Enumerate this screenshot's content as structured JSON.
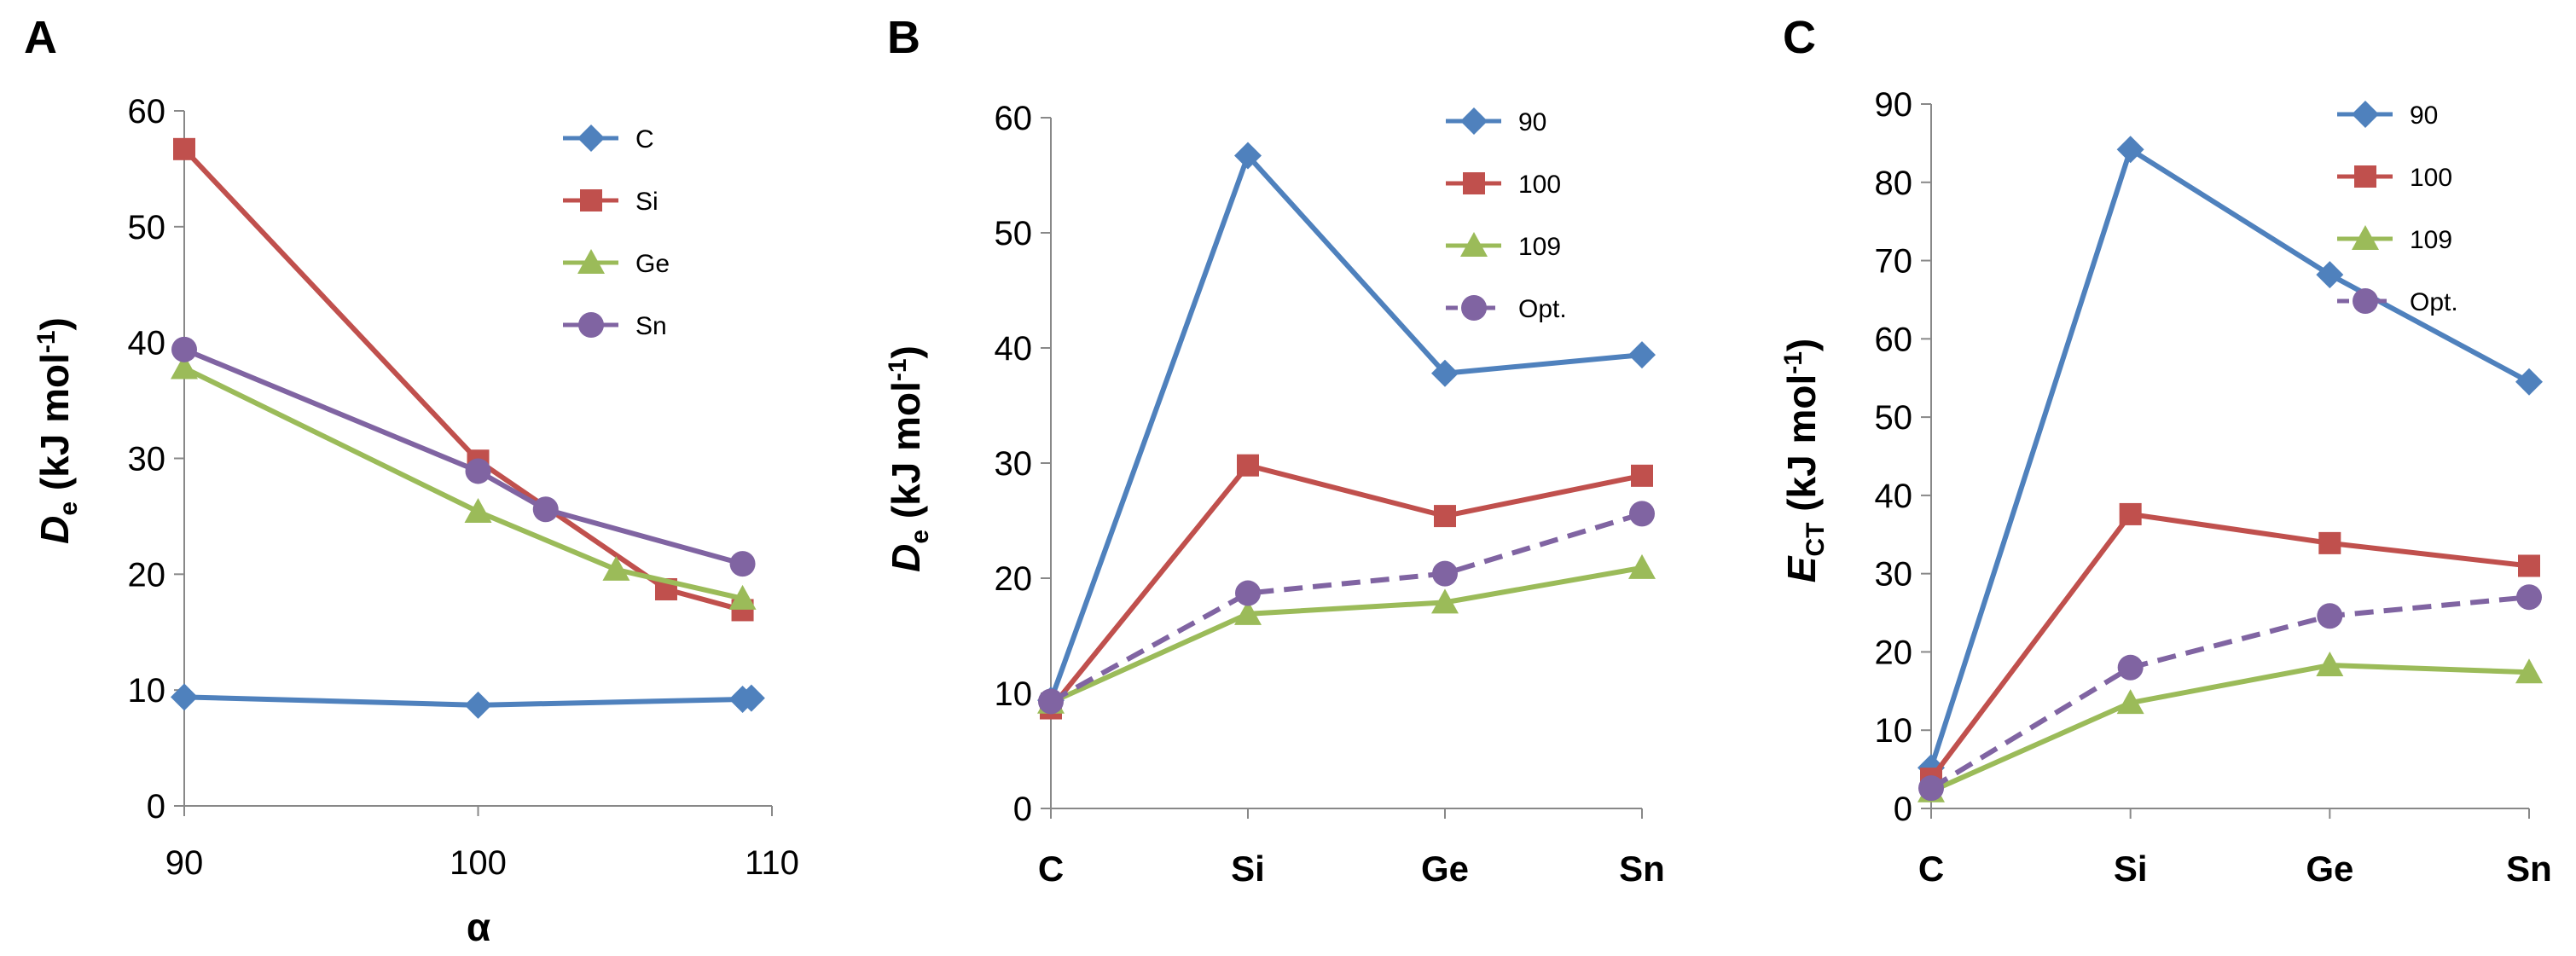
{
  "colors": {
    "blue": "#4F81BD",
    "red": "#C0504D",
    "green": "#9BBB59",
    "purple": "#8064A2",
    "axis": "#888888"
  },
  "axis_titles": {
    "A": {
      "y_main": "D",
      "y_sub": "e",
      "y_unit": "(kJ mol",
      "y_sup": "-1",
      "y_close": ")",
      "x": "α"
    },
    "B": {
      "y_main": "D",
      "y_sub": "e",
      "y_unit": "(kJ mol",
      "y_sup": "-1",
      "y_close": ")"
    },
    "C": {
      "y_main": "E",
      "y_sub": "CT",
      "y_unit": "(kJ mol",
      "y_sup": "-1",
      "y_close": ")"
    }
  },
  "chart_data": [
    {
      "panel": "A",
      "type": "line",
      "xlabel": "α",
      "ylabel": "De (kJ mol-1)",
      "xlim": [
        90,
        110
      ],
      "ylim": [
        0,
        60
      ],
      "xticks": [
        90,
        100,
        110
      ],
      "yticks": [
        0,
        10,
        20,
        30,
        40,
        50,
        60
      ],
      "legend_position": "top-right",
      "series": [
        {
          "name": "C",
          "marker": "diamond",
          "color": "#4F81BD",
          "dashed": false,
          "points": [
            [
              90,
              9.4
            ],
            [
              100,
              8.7
            ],
            [
              109,
              9.2
            ],
            [
              109.3,
              9.3
            ]
          ]
        },
        {
          "name": "Si",
          "marker": "square",
          "color": "#C0504D",
          "dashed": false,
          "points": [
            [
              90,
              56.7
            ],
            [
              100,
              29.8
            ],
            [
              106.4,
              18.7
            ],
            [
              109,
              16.9
            ]
          ]
        },
        {
          "name": "Ge",
          "marker": "triangle",
          "color": "#9BBB59",
          "dashed": false,
          "points": [
            [
              90,
              37.8
            ],
            [
              100,
              25.4
            ],
            [
              104.7,
              20.4
            ],
            [
              109,
              17.9
            ]
          ]
        },
        {
          "name": "Sn",
          "marker": "circle",
          "color": "#8064A2",
          "dashed": false,
          "points": [
            [
              90,
              39.4
            ],
            [
              100,
              28.9
            ],
            [
              102.3,
              25.6
            ],
            [
              109,
              20.9
            ]
          ]
        }
      ]
    },
    {
      "panel": "B",
      "type": "line",
      "categories": [
        "C",
        "Si",
        "Ge",
        "Sn"
      ],
      "ylabel": "De (kJ mol-1)",
      "ylim": [
        0,
        60
      ],
      "yticks": [
        0,
        10,
        20,
        30,
        40,
        50,
        60
      ],
      "legend_position": "top-right",
      "series": [
        {
          "name": "90",
          "marker": "diamond",
          "color": "#4F81BD",
          "dashed": false,
          "values": [
            9.4,
            56.7,
            37.8,
            39.4
          ]
        },
        {
          "name": "100",
          "marker": "square",
          "color": "#C0504D",
          "dashed": false,
          "values": [
            8.7,
            29.8,
            25.4,
            28.9
          ]
        },
        {
          "name": "109",
          "marker": "triangle",
          "color": "#9BBB59",
          "dashed": false,
          "values": [
            9.2,
            16.9,
            17.9,
            20.9
          ]
        },
        {
          "name": "Opt.",
          "marker": "circle",
          "color": "#8064A2",
          "dashed": true,
          "values": [
            9.3,
            18.7,
            20.4,
            25.6
          ]
        }
      ]
    },
    {
      "panel": "C",
      "type": "line",
      "categories": [
        "C",
        "Si",
        "Ge",
        "Sn"
      ],
      "ylabel": "ECT (kJ mol-1)",
      "ylim": [
        0,
        90
      ],
      "yticks": [
        0,
        10,
        20,
        30,
        40,
        50,
        60,
        70,
        80,
        90
      ],
      "legend_position": "top-right",
      "series": [
        {
          "name": "90",
          "marker": "diamond",
          "color": "#4F81BD",
          "dashed": false,
          "values": [
            5.2,
            84.2,
            68.2,
            54.5
          ]
        },
        {
          "name": "100",
          "marker": "square",
          "color": "#C0504D",
          "dashed": false,
          "values": [
            3.8,
            37.6,
            33.9,
            31.0
          ]
        },
        {
          "name": "109",
          "marker": "triangle",
          "color": "#9BBB59",
          "dashed": false,
          "values": [
            2.2,
            13.5,
            18.3,
            17.4
          ]
        },
        {
          "name": "Opt.",
          "marker": "circle",
          "color": "#8064A2",
          "dashed": true,
          "values": [
            2.6,
            18.0,
            24.6,
            27.0
          ]
        }
      ]
    }
  ]
}
